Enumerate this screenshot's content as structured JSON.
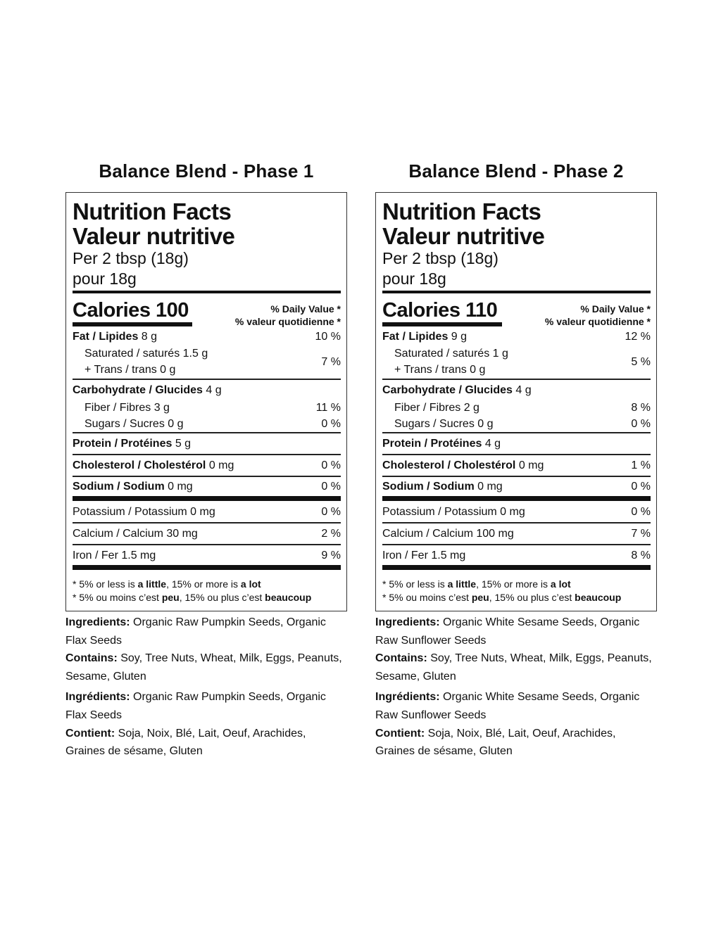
{
  "panels": [
    {
      "title": "Balance Blend - Phase 1",
      "heading_en": "Nutrition Facts",
      "heading_fr": "Valeur nutritive",
      "serving_en": "Per 2 tbsp (18g)",
      "serving_fr": "pour 18g",
      "calories_label": "Calories",
      "calories": "100",
      "dv_header_en": "% Daily Value *",
      "dv_header_fr": "% valeur quotidienne *",
      "fat": {
        "label": "Fat / Lipides",
        "amount": "8 g",
        "dv": "10 %"
      },
      "saturated": {
        "label": "Saturated / saturés 1.5 g"
      },
      "trans": {
        "label": "+ Trans / trans 0 g",
        "dv": "7 %"
      },
      "carb": {
        "label": "Carbohydrate / Glucides",
        "amount": "4 g"
      },
      "fiber": {
        "label": "Fiber / Fibres 3 g",
        "dv": "11 %"
      },
      "sugars": {
        "label": "Sugars / Sucres 0 g",
        "dv": "0 %"
      },
      "protein": {
        "label": "Protein / Protéines",
        "amount": "5 g"
      },
      "cholesterol": {
        "label": "Cholesterol / Cholestérol",
        "amount": "0 mg",
        "dv": "0 %"
      },
      "sodium": {
        "label": "Sodium / Sodium",
        "amount": "0 mg",
        "dv": "0 %"
      },
      "potassium": {
        "label": "Potassium / Potassium 0 mg",
        "dv": "0 %"
      },
      "calcium": {
        "label": "Calcium / Calcium 30 mg",
        "dv": "2 %"
      },
      "iron": {
        "label": "Iron / Fer 1.5 mg",
        "dv": "9 %"
      },
      "ingredients_label": "Ingredients:",
      "ingredients": "Organic Raw Pumpkin Seeds, Organic Flax Seeds",
      "contains_label": "Contains:",
      "contains": "Soy, Tree Nuts, Wheat, Milk, Eggs, Peanuts, Sesame, Gluten",
      "ingredients_fr_label": "Ingrédients:",
      "ingredients_fr": "Organic Raw Pumpkin Seeds, Organic Flax Seeds",
      "contains_fr_label": "Contient:",
      "contains_fr": "Soja, Noix, Blé, Lait, Oeuf, Arachides, Graines de sésame, Gluten"
    },
    {
      "title": "Balance Blend - Phase 2",
      "heading_en": "Nutrition Facts",
      "heading_fr": "Valeur nutritive",
      "serving_en": "Per 2 tbsp (18g)",
      "serving_fr": "pour 18g",
      "calories_label": "Calories",
      "calories": "110",
      "dv_header_en": "% Daily Value *",
      "dv_header_fr": "% valeur quotidienne *",
      "fat": {
        "label": "Fat / Lipides",
        "amount": "9 g",
        "dv": "12 %"
      },
      "saturated": {
        "label": "Saturated / saturés 1 g"
      },
      "trans": {
        "label": "+ Trans / trans 0 g",
        "dv": "5 %"
      },
      "carb": {
        "label": "Carbohydrate / Glucides",
        "amount": "4 g"
      },
      "fiber": {
        "label": "Fiber / Fibres 2 g",
        "dv": "8 %"
      },
      "sugars": {
        "label": "Sugars / Sucres 0 g",
        "dv": "0 %"
      },
      "protein": {
        "label": "Protein / Protéines",
        "amount": "4 g"
      },
      "cholesterol": {
        "label": "Cholesterol / Cholestérol",
        "amount": "0 mg",
        "dv": "1 %"
      },
      "sodium": {
        "label": "Sodium / Sodium",
        "amount": "0 mg",
        "dv": "0 %"
      },
      "potassium": {
        "label": "Potassium / Potassium 0 mg",
        "dv": "0 %"
      },
      "calcium": {
        "label": "Calcium / Calcium 100 mg",
        "dv": "7 %"
      },
      "iron": {
        "label": "Iron / Fer 1.5 mg",
        "dv": "8 %"
      },
      "ingredients_label": "Ingredients:",
      "ingredients": "Organic White Sesame Seeds, Organic Raw Sunflower Seeds",
      "contains_label": "Contains:",
      "contains": "Soy, Tree Nuts, Wheat, Milk, Eggs, Peanuts, Sesame, Gluten",
      "ingredients_fr_label": "Ingrédients:",
      "ingredients_fr": "Organic White Sesame Seeds, Organic Raw Sunflower Seeds",
      "contains_fr_label": "Contient:",
      "contains_fr": "Soja, Noix, Blé, Lait, Oeuf, Arachides, Graines de sésame, Gluten"
    }
  ],
  "footnote": {
    "en_1": "* 5% or less is ",
    "en_little": "a little",
    "en_2": ", 15% or more is ",
    "en_lot": "a lot",
    "fr_1": "* 5% ou moins c’est ",
    "fr_peu": "peu",
    "fr_2": ", 15% ou plus c’est ",
    "fr_beaucoup": "beaucoup"
  }
}
